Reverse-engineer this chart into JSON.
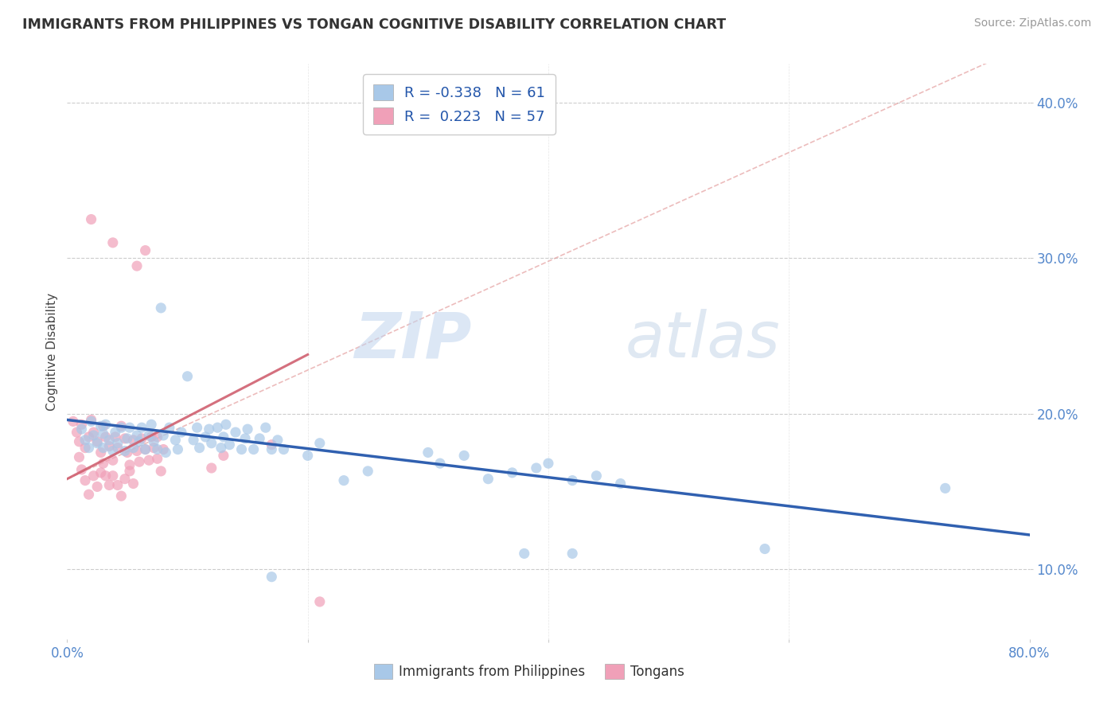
{
  "title": "IMMIGRANTS FROM PHILIPPINES VS TONGAN COGNITIVE DISABILITY CORRELATION CHART",
  "source": "Source: ZipAtlas.com",
  "ylabel": "Cognitive Disability",
  "xlim": [
    0.0,
    0.8
  ],
  "ylim": [
    0.055,
    0.425
  ],
  "xticks": [
    0.0,
    0.2,
    0.4,
    0.6,
    0.8
  ],
  "xticklabels": [
    "0.0%",
    "",
    "",
    "",
    "80.0%"
  ],
  "yticks": [
    0.1,
    0.2,
    0.3,
    0.4
  ],
  "yticklabels": [
    "10.0%",
    "20.0%",
    "30.0%",
    "40.0%"
  ],
  "watermark": "ZIPatlas",
  "blue_color": "#a8c8e8",
  "pink_color": "#f0a0b8",
  "blue_line_color": "#3060b0",
  "pink_solid_color": "#d06070",
  "pink_dash_color": "#e09090",
  "blue_line": [
    [
      0.0,
      0.196
    ],
    [
      0.8,
      0.122
    ]
  ],
  "pink_solid_line": [
    [
      0.0,
      0.158
    ],
    [
      0.2,
      0.238
    ]
  ],
  "pink_dash_line": [
    [
      0.0,
      0.158
    ],
    [
      0.8,
      0.438
    ]
  ],
  "blue_scatter": [
    [
      0.012,
      0.19
    ],
    [
      0.015,
      0.183
    ],
    [
      0.018,
      0.178
    ],
    [
      0.02,
      0.195
    ],
    [
      0.022,
      0.186
    ],
    [
      0.025,
      0.181
    ],
    [
      0.028,
      0.192
    ],
    [
      0.03,
      0.178
    ],
    [
      0.03,
      0.187
    ],
    [
      0.032,
      0.193
    ],
    [
      0.035,
      0.183
    ],
    [
      0.038,
      0.176
    ],
    [
      0.04,
      0.188
    ],
    [
      0.042,
      0.181
    ],
    [
      0.045,
      0.191
    ],
    [
      0.048,
      0.176
    ],
    [
      0.05,
      0.184
    ],
    [
      0.052,
      0.191
    ],
    [
      0.055,
      0.178
    ],
    [
      0.058,
      0.186
    ],
    [
      0.06,
      0.182
    ],
    [
      0.062,
      0.191
    ],
    [
      0.065,
      0.177
    ],
    [
      0.068,
      0.186
    ],
    [
      0.07,
      0.193
    ],
    [
      0.072,
      0.182
    ],
    [
      0.075,
      0.177
    ],
    [
      0.078,
      0.268
    ],
    [
      0.08,
      0.186
    ],
    [
      0.082,
      0.175
    ],
    [
      0.085,
      0.191
    ],
    [
      0.09,
      0.183
    ],
    [
      0.092,
      0.177
    ],
    [
      0.095,
      0.188
    ],
    [
      0.1,
      0.224
    ],
    [
      0.105,
      0.183
    ],
    [
      0.108,
      0.191
    ],
    [
      0.11,
      0.178
    ],
    [
      0.115,
      0.185
    ],
    [
      0.118,
      0.19
    ],
    [
      0.12,
      0.181
    ],
    [
      0.125,
      0.191
    ],
    [
      0.128,
      0.178
    ],
    [
      0.13,
      0.185
    ],
    [
      0.132,
      0.193
    ],
    [
      0.135,
      0.18
    ],
    [
      0.14,
      0.188
    ],
    [
      0.145,
      0.177
    ],
    [
      0.148,
      0.184
    ],
    [
      0.15,
      0.19
    ],
    [
      0.155,
      0.177
    ],
    [
      0.16,
      0.184
    ],
    [
      0.165,
      0.191
    ],
    [
      0.17,
      0.177
    ],
    [
      0.175,
      0.183
    ],
    [
      0.18,
      0.177
    ],
    [
      0.2,
      0.173
    ],
    [
      0.21,
      0.181
    ],
    [
      0.23,
      0.157
    ],
    [
      0.25,
      0.163
    ],
    [
      0.3,
      0.175
    ],
    [
      0.31,
      0.168
    ],
    [
      0.33,
      0.173
    ],
    [
      0.35,
      0.158
    ],
    [
      0.37,
      0.162
    ],
    [
      0.39,
      0.165
    ],
    [
      0.4,
      0.168
    ],
    [
      0.42,
      0.157
    ],
    [
      0.44,
      0.16
    ],
    [
      0.46,
      0.155
    ],
    [
      0.38,
      0.11
    ],
    [
      0.42,
      0.11
    ],
    [
      0.58,
      0.113
    ],
    [
      0.73,
      0.152
    ],
    [
      0.17,
      0.095
    ]
  ],
  "pink_scatter": [
    [
      0.005,
      0.195
    ],
    [
      0.008,
      0.188
    ],
    [
      0.01,
      0.182
    ],
    [
      0.012,
      0.193
    ],
    [
      0.015,
      0.178
    ],
    [
      0.018,
      0.185
    ],
    [
      0.02,
      0.325
    ],
    [
      0.02,
      0.196
    ],
    [
      0.022,
      0.188
    ],
    [
      0.025,
      0.182
    ],
    [
      0.028,
      0.175
    ],
    [
      0.03,
      0.192
    ],
    [
      0.032,
      0.185
    ],
    [
      0.035,
      0.179
    ],
    [
      0.038,
      0.17
    ],
    [
      0.04,
      0.185
    ],
    [
      0.042,
      0.178
    ],
    [
      0.045,
      0.192
    ],
    [
      0.048,
      0.184
    ],
    [
      0.05,
      0.175
    ],
    [
      0.052,
      0.167
    ],
    [
      0.055,
      0.183
    ],
    [
      0.058,
      0.176
    ],
    [
      0.06,
      0.169
    ],
    [
      0.062,
      0.184
    ],
    [
      0.065,
      0.177
    ],
    [
      0.068,
      0.17
    ],
    [
      0.07,
      0.185
    ],
    [
      0.072,
      0.178
    ],
    [
      0.075,
      0.171
    ],
    [
      0.078,
      0.163
    ],
    [
      0.01,
      0.172
    ],
    [
      0.012,
      0.164
    ],
    [
      0.015,
      0.157
    ],
    [
      0.018,
      0.148
    ],
    [
      0.022,
      0.16
    ],
    [
      0.025,
      0.153
    ],
    [
      0.028,
      0.162
    ],
    [
      0.03,
      0.168
    ],
    [
      0.032,
      0.16
    ],
    [
      0.035,
      0.154
    ],
    [
      0.038,
      0.16
    ],
    [
      0.042,
      0.154
    ],
    [
      0.045,
      0.147
    ],
    [
      0.048,
      0.158
    ],
    [
      0.052,
      0.163
    ],
    [
      0.055,
      0.155
    ],
    [
      0.038,
      0.31
    ],
    [
      0.058,
      0.295
    ],
    [
      0.065,
      0.305
    ],
    [
      0.075,
      0.185
    ],
    [
      0.08,
      0.177
    ],
    [
      0.12,
      0.165
    ],
    [
      0.13,
      0.173
    ],
    [
      0.17,
      0.18
    ],
    [
      0.21,
      0.079
    ]
  ]
}
